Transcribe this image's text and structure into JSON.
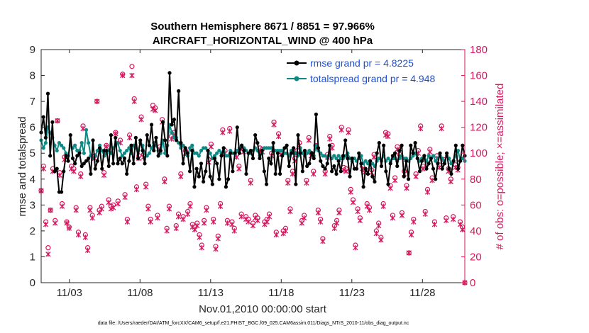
{
  "chart_data": {
    "type": "line",
    "title": "Southern Hemisphere 8671 / 8851 = 97.966%",
    "subtitle": "AIRCRAFT_HORIZONTAL_WIND @ 400 hPa",
    "xlabel": "Nov.01,2010 00:00:00 start",
    "ylabel_left": "rmse and totalspread",
    "ylabel_right": "# of obs: o=possible; ×=assimilated",
    "footer": "data file: /Users/raeder/DAI/ATM_forcXX/CAM6_setup/f.e21.FHIST_BGC.f09_025.CAM6assim.011/Diags_NTrS_2010-11/obs_diag_output.nc",
    "xlim": [
      1,
      31
    ],
    "ylim_left": [
      0,
      9
    ],
    "ylim_right": [
      0,
      180
    ],
    "x_ticks": [
      3,
      8,
      13,
      18,
      23,
      28
    ],
    "x_tick_labels": [
      "11/03",
      "11/08",
      "11/13",
      "11/18",
      "11/23",
      "11/28"
    ],
    "y_left_ticks": [
      "0",
      "1",
      "2",
      "3",
      "4",
      "5",
      "6",
      "7",
      "8",
      "9"
    ],
    "y_right_ticks": [
      "0",
      "20",
      "40",
      "60",
      "80",
      "100",
      "120",
      "140",
      "160",
      "180"
    ],
    "colors": {
      "rmse": "#000000",
      "spread": "#0e8a86",
      "obs": "#d6175e",
      "legend_text": "#1a4fd8"
    },
    "series": [
      {
        "name": "rmse grand pr = 4.8225",
        "color": "#000000",
        "values": [
          5.8,
          6.4,
          5.6,
          7.3,
          4.9,
          6.2,
          4.3,
          4.4,
          3.5,
          3.5,
          4.3,
          4.9,
          4.7,
          5.7,
          4.8,
          4.6,
          4.9,
          5.0,
          4.5,
          4.6,
          4.7,
          4.8,
          4.2,
          5.5,
          4.4,
          4.7,
          5.2,
          4.4,
          5.1,
          5.1,
          4.5,
          5.7,
          4.6,
          5.6,
          4.6,
          4.8,
          4.6,
          4.8,
          4.2,
          4.7,
          5.3,
          4.6,
          5.6,
          4.8,
          5.5,
          5.1,
          4.6,
          5.7,
          5.3,
          6.1,
          5.1,
          5.6,
          4.9,
          5.1,
          6.2,
          5.5,
          4.9,
          8.1,
          6.1,
          6.3,
          5.5,
          7.4,
          5.4,
          4.6,
          5.2,
          5.0,
          4.3,
          5.1,
          3.7,
          4.4,
          4.1,
          4.6,
          3.9,
          4.3,
          5.1,
          4.1,
          3.8,
          4.8,
          4.6,
          4.0,
          4.9,
          5.2,
          3.7,
          4.0,
          5.0,
          4.3,
          5.0,
          6.0,
          5.0,
          5.3,
          5.1,
          4.2,
          5.0,
          5.1,
          4.8,
          5.7,
          5.4,
          4.8,
          5.1,
          4.3,
          3.8,
          4.8,
          4.6,
          5.4,
          4.2,
          5.0,
          4.2,
          4.9,
          5.2,
          5.3,
          4.5,
          5.0,
          5.2,
          3.8,
          5.7,
          5.0,
          4.3,
          5.1,
          4.5,
          4.6,
          5.0,
          4.8,
          6.5,
          5.2,
          4.7,
          4.5,
          4.4,
          4.6,
          5.3,
          4.3,
          4.5,
          4.2,
          4.7,
          4.3,
          4.9,
          5.5,
          4.8,
          4.1,
          4.8,
          4.4,
          4.4,
          5.0,
          4.6,
          3.7,
          4.4,
          4.2,
          4.7,
          4.1,
          3.9,
          5.0,
          5.4,
          4.5,
          5.3,
          4.3,
          3.8,
          4.6,
          4.9,
          5.0,
          4.5,
          5.1,
          5.3,
          4.1,
          4.7,
          4.0,
          5.3,
          5.0,
          5.4,
          4.8,
          4.3,
          4.7,
          4.9,
          4.4,
          4.6,
          4.8,
          4.4,
          4.0,
          4.6,
          5.0,
          4.4,
          4.6,
          5.0,
          4.4,
          4.2,
          4.7,
          5.3,
          4.4,
          4.7,
          5.3,
          4.9
        ]
      },
      {
        "name": "totalspread grand pr = 4.948",
        "color": "#0e8a86",
        "values": [
          5.5,
          5.2,
          5.4,
          6.0,
          5.8,
          5.6,
          5.3,
          5.1,
          5.4,
          5.3,
          5.2,
          5.0,
          4.9,
          5.3,
          5.2,
          5.3,
          5.1,
          5.1,
          5.4,
          5.0,
          5.9,
          5.4,
          4.9,
          4.8,
          4.9,
          5.1,
          5.3,
          5.1,
          4.9,
          5.0,
          5.1,
          5.0,
          5.2,
          5.3,
          5.4,
          5.1,
          4.9,
          5.0,
          5.1,
          5.2,
          5.0,
          5.3,
          5.2,
          5.1,
          5.4,
          5.3,
          5.0,
          4.9,
          5.0,
          5.2,
          5.4,
          5.3,
          5.1,
          5.0,
          5.5,
          5.0,
          5.3,
          6.1,
          5.8,
          5.6,
          5.6,
          5.4,
          5.2,
          5.3,
          5.1,
          4.9,
          5.2,
          5.3,
          5.0,
          5.0,
          4.9,
          5.1,
          5.2,
          5.2,
          5.1,
          5.0,
          4.8,
          4.9,
          5.0,
          5.1,
          5.0,
          5.2,
          4.9,
          4.9,
          5.1,
          5.0,
          5.0,
          5.1,
          5.2,
          5.3,
          5.2,
          5.1,
          5.0,
          5.0,
          5.1,
          5.2,
          5.1,
          4.9,
          5.0,
          5.2,
          5.2,
          5.2,
          5.2,
          5.1,
          5.1,
          5.1,
          5.1,
          5.1,
          5.0,
          5.0,
          4.9,
          5.1,
          5.0,
          5.0,
          4.9,
          5.2,
          5.0,
          4.9,
          5.0,
          5.1,
          5.0,
          4.9,
          5.3,
          5.1,
          5.0,
          4.9,
          4.9,
          4.8,
          4.9,
          4.8,
          4.9,
          4.8,
          4.9,
          4.8,
          4.8,
          4.9,
          5.0,
          4.8,
          4.7,
          4.8,
          4.7,
          4.8,
          4.9,
          4.6,
          4.7,
          4.6,
          4.7,
          4.6,
          4.5,
          4.7,
          4.8,
          4.7,
          4.9,
          4.7,
          4.8,
          4.7,
          4.8,
          4.8,
          4.7,
          4.8,
          4.9,
          4.8,
          4.8,
          4.7,
          4.8,
          4.9,
          5.0,
          4.8,
          4.7,
          4.8,
          4.8,
          4.7,
          4.9,
          4.8,
          4.9,
          4.7,
          4.8,
          4.9,
          4.8,
          4.7,
          4.9,
          4.8,
          4.6,
          4.7,
          4.9,
          5.1,
          4.7,
          4.8,
          4.7
        ]
      }
    ],
    "obs_possible": [
      71,
      90,
      47,
      27,
      56,
      88,
      48,
      125,
      85,
      61,
      97,
      47,
      43,
      90,
      88,
      58,
      39,
      84,
      121,
      37,
      27,
      58,
      52,
      98,
      140,
      56,
      59,
      85,
      106,
      64,
      59,
      60,
      116,
      63,
      110,
      161,
      68,
      49,
      114,
      167,
      142,
      74,
      98,
      128,
      99,
      76,
      59,
      49,
      137,
      135,
      52,
      105,
      126,
      80,
      42,
      59,
      113,
      116,
      44,
      53,
      84,
      51,
      102,
      55,
      61,
      45,
      43,
      46,
      37,
      29,
      48,
      58,
      95,
      107,
      49,
      28,
      36,
      61,
      118,
      102,
      48,
      119,
      47,
      42,
      99,
      90,
      53,
      103,
      51,
      49,
      79,
      46,
      52,
      50,
      104,
      103,
      47,
      49,
      53,
      100,
      124,
      39,
      115,
      101,
      40,
      42,
      79,
      57,
      86,
      96,
      102,
      108,
      48,
      52,
      79,
      112,
      100,
      86,
      106,
      56,
      49,
      34,
      86,
      99,
      113,
      106,
      44,
      48,
      56,
      120,
      89,
      88,
      118,
      72,
      64,
      29,
      57,
      50,
      90,
      87,
      61,
      58,
      87,
      99,
      40,
      46,
      35,
      61,
      116,
      115,
      75,
      52,
      81,
      105,
      99,
      54,
      86,
      75,
      23,
      39,
      49,
      84,
      102,
      121,
      90,
      55,
      72,
      103,
      81,
      47,
      98,
      91,
      121,
      95,
      50,
      88,
      80,
      51,
      91,
      89,
      47,
      43,
      0
    ],
    "obs_assimilated": [
      71,
      88,
      45,
      22,
      56,
      86,
      46,
      125,
      83,
      59,
      95,
      46,
      42,
      88,
      86,
      56,
      37,
      82,
      119,
      35,
      25,
      56,
      50,
      96,
      140,
      54,
      57,
      83,
      105,
      62,
      57,
      58,
      115,
      61,
      108,
      160,
      66,
      47,
      112,
      160,
      140,
      72,
      96,
      126,
      97,
      74,
      57,
      47,
      134,
      133,
      50,
      103,
      124,
      78,
      40,
      57,
      111,
      114,
      42,
      51,
      82,
      49,
      100,
      53,
      59,
      43,
      41,
      44,
      35,
      27,
      46,
      56,
      93,
      105,
      47,
      26,
      34,
      59,
      116,
      100,
      46,
      117,
      45,
      40,
      97,
      88,
      51,
      101,
      49,
      47,
      77,
      44,
      50,
      48,
      102,
      101,
      45,
      47,
      51,
      98,
      122,
      37,
      113,
      99,
      38,
      40,
      77,
      55,
      84,
      94,
      100,
      106,
      46,
      50,
      77,
      110,
      98,
      84,
      104,
      54,
      47,
      32,
      84,
      97,
      111,
      104,
      42,
      46,
      54,
      118,
      87,
      86,
      116,
      70,
      62,
      27,
      55,
      48,
      88,
      85,
      59,
      56,
      85,
      97,
      38,
      44,
      33,
      59,
      114,
      113,
      73,
      50,
      79,
      103,
      97,
      52,
      84,
      73,
      23,
      37,
      47,
      82,
      100,
      119,
      88,
      53,
      70,
      101,
      79,
      45,
      96,
      89,
      119,
      93,
      48,
      86,
      78,
      49,
      89,
      87,
      45,
      41,
      0
    ]
  }
}
